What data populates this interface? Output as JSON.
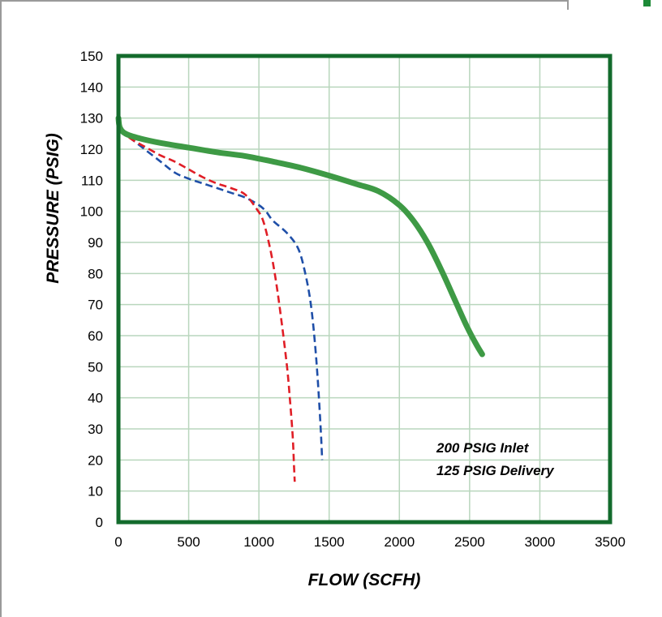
{
  "colors": {
    "plot_border": "#136b2c",
    "grid": "#b9d6bd",
    "accent": "#1d8a37"
  },
  "chart_data": {
    "type": "line",
    "xlabel": "FLOW (SCFH)",
    "ylabel": "PRESSURE (PSIG)",
    "xlim": [
      0,
      3500
    ],
    "ylim": [
      0,
      150
    ],
    "xticks": [
      0,
      500,
      1000,
      1500,
      2000,
      2500,
      3000,
      3500
    ],
    "yticks": [
      0,
      10,
      20,
      30,
      40,
      50,
      60,
      70,
      80,
      90,
      100,
      110,
      120,
      130,
      140,
      150
    ],
    "grid": true,
    "annotations": [
      "200 PSIG Inlet",
      "125 PSIG Delivery"
    ],
    "series": [
      {
        "color": "#3e9a45",
        "style": "solid",
        "x": [
          0,
          10,
          50,
          150,
          300,
          500,
          700,
          900,
          1100,
          1300,
          1500,
          1700,
          1850,
          2000,
          2100,
          2200,
          2300,
          2400,
          2480,
          2550,
          2590
        ],
        "y": [
          130,
          127,
          125,
          123.5,
          122,
          120.5,
          119,
          117.8,
          116,
          114,
          111.5,
          108.7,
          106.5,
          102,
          97,
          90,
          81,
          71,
          63,
          57,
          54
        ]
      },
      {
        "color": "#1f4fa8",
        "style": "dashed",
        "x": [
          10,
          100,
          200,
          300,
          400,
          500,
          600,
          700,
          800,
          900,
          1000,
          1050,
          1100,
          1200,
          1280,
          1330,
          1370,
          1400,
          1420,
          1440,
          1450
        ],
        "y": [
          126,
          123,
          119.5,
          116,
          112.5,
          110.5,
          109,
          107.5,
          106,
          104.5,
          102,
          100,
          97,
          93,
          88,
          80,
          70,
          57,
          45,
          30,
          20
        ]
      },
      {
        "color": "#e01e26",
        "style": "dashed",
        "x": [
          10,
          100,
          200,
          300,
          400,
          500,
          600,
          700,
          800,
          900,
          980,
          1030,
          1080,
          1120,
          1160,
          1200,
          1220,
          1240,
          1250,
          1255
        ],
        "y": [
          126,
          123,
          120.5,
          118,
          116,
          113.5,
          111,
          109,
          107.5,
          105.5,
          101,
          97,
          88,
          78,
          65,
          50,
          40,
          28,
          18,
          13
        ]
      }
    ]
  }
}
